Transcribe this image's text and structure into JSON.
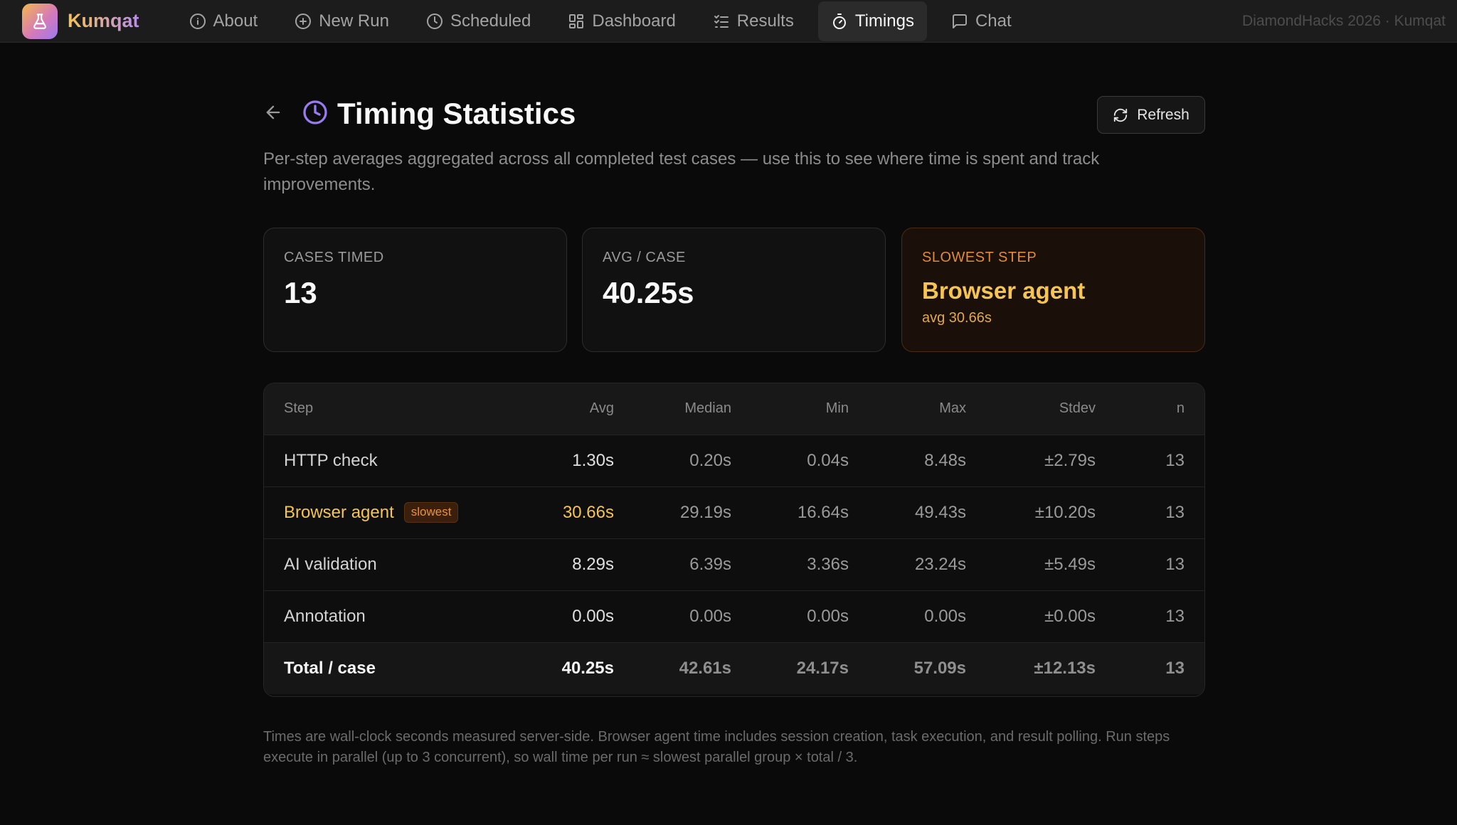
{
  "app": {
    "name": "Kumqat",
    "brand_tag": "DiamondHacks 2026 · Kumqat"
  },
  "nav": {
    "items": [
      {
        "label": "About",
        "icon": "info-icon",
        "active": false
      },
      {
        "label": "New Run",
        "icon": "plus-circle-icon",
        "active": false
      },
      {
        "label": "Scheduled",
        "icon": "clock-icon",
        "active": false
      },
      {
        "label": "Dashboard",
        "icon": "grid-icon",
        "active": false
      },
      {
        "label": "Results",
        "icon": "checklist-icon",
        "active": false
      },
      {
        "label": "Timings",
        "icon": "stopwatch-icon",
        "active": true
      },
      {
        "label": "Chat",
        "icon": "chat-icon",
        "active": false
      }
    ]
  },
  "page": {
    "title": "Timing Statistics",
    "subtitle": "Per-step averages aggregated across all completed test cases — use this to see where time is spent and track improvements.",
    "refresh_label": "Refresh"
  },
  "cards": {
    "cases_timed": {
      "label": "Cases timed",
      "value": "13"
    },
    "avg_case": {
      "label": "Avg / case",
      "value": "40.25s"
    },
    "slowest_step": {
      "label": "Slowest step",
      "value": "Browser agent",
      "sub": "avg 30.66s"
    }
  },
  "table": {
    "headers": [
      "Step",
      "Avg",
      "Median",
      "Min",
      "Max",
      "Stdev",
      "n"
    ],
    "rows": [
      {
        "step": "HTTP check",
        "avg": "1.30s",
        "median": "0.20s",
        "min": "0.04s",
        "max": "8.48s",
        "stdev": "±2.79s",
        "n": "13"
      },
      {
        "step": "Browser agent",
        "badge": "slowest",
        "avg": "30.66s",
        "median": "29.19s",
        "min": "16.64s",
        "max": "49.43s",
        "stdev": "±10.20s",
        "n": "13"
      },
      {
        "step": "AI validation",
        "avg": "8.29s",
        "median": "6.39s",
        "min": "3.36s",
        "max": "23.24s",
        "stdev": "±5.49s",
        "n": "13"
      },
      {
        "step": "Annotation",
        "avg": "0.00s",
        "median": "0.00s",
        "min": "0.00s",
        "max": "0.00s",
        "stdev": "±0.00s",
        "n": "13"
      }
    ],
    "total": {
      "step": "Total / case",
      "avg": "40.25s",
      "median": "42.61s",
      "min": "24.17s",
      "max": "57.09s",
      "stdev": "±12.13s",
      "n": "13"
    }
  },
  "footnote": "Times are wall-clock seconds measured server-side. Browser agent time includes session creation, task execution, and result polling. Run steps execute in parallel (up to 3 concurrent), so wall time per run ≈ slowest parallel group × total / 3.",
  "colors": {
    "accent": "#9a7af0",
    "warn": "#f5c451",
    "warn_label": "#e08a3a",
    "background": "#0a0a0a"
  }
}
